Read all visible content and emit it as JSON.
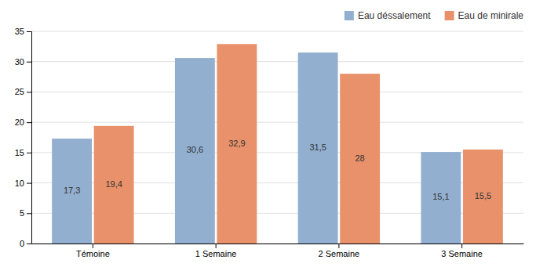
{
  "chart_data": {
    "type": "bar",
    "categories": [
      "Témoine",
      "1 Semaine",
      "2 Semaine",
      "3 Semaine"
    ],
    "series": [
      {
        "name": "Eau déssalement",
        "color": "#92afd0",
        "values": [
          17.3,
          30.6,
          31.5,
          15.1
        ],
        "value_labels": [
          "17,3",
          "30,6",
          "31,5",
          "15,1"
        ]
      },
      {
        "name": "Eau de minirale",
        "color": "#e8916a",
        "values": [
          19.4,
          32.9,
          28.0,
          15.5
        ],
        "value_labels": [
          "19,4",
          "32,9",
          "28",
          "15,5"
        ]
      }
    ],
    "ylim": [
      0,
      35
    ],
    "yticks": [
      0,
      5,
      10,
      15,
      20,
      25,
      30,
      35
    ],
    "grid": true,
    "legend": "upper right",
    "data_labels": true
  }
}
